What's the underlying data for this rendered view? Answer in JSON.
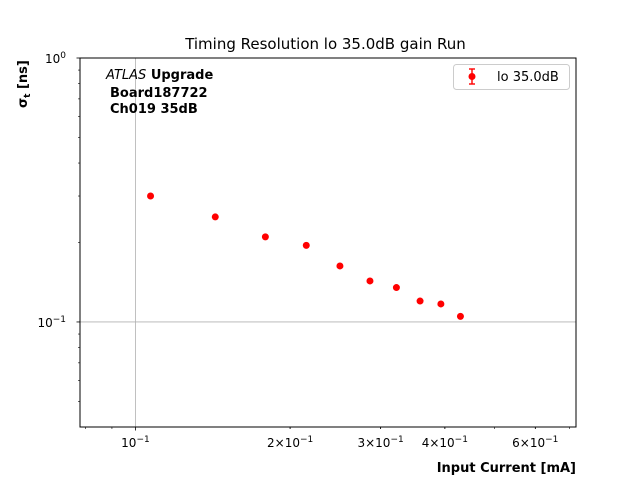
{
  "chart_data": {
    "type": "scatter",
    "title": "Timing Resolution lo 35.0dB gain Run",
    "xlabel": "Input Current [mA]",
    "ylabel": "σ_t [ns]",
    "xscale": "log",
    "yscale": "log",
    "xlim": [
      0.078,
      0.72
    ],
    "ylim": [
      0.04,
      1.0
    ],
    "grid": true,
    "legend_position": "top-right",
    "annotation": {
      "experiment": "ATLAS",
      "label": "Upgrade",
      "line2": "Board187722",
      "line3": "Ch019 35dB"
    },
    "x_ticks": [
      {
        "value": 0.1,
        "base": "10",
        "exp": "−1",
        "mant": ""
      },
      {
        "value": 0.2,
        "base": "10",
        "exp": "−1",
        "mant": "2×"
      },
      {
        "value": 0.3,
        "base": "10",
        "exp": "−1",
        "mant": "3×"
      },
      {
        "value": 0.4,
        "base": "10",
        "exp": "−1",
        "mant": "4×"
      },
      {
        "value": 0.6,
        "base": "10",
        "exp": "−1",
        "mant": "6×"
      }
    ],
    "y_ticks": [
      {
        "value": 1.0,
        "base": "10",
        "exp": "0"
      },
      {
        "value": 0.1,
        "base": "10",
        "exp": "−1"
      }
    ],
    "series": [
      {
        "name": "lo 35.0dB",
        "color": "#ff0000",
        "x": [
          0.107,
          0.143,
          0.179,
          0.215,
          0.25,
          0.286,
          0.322,
          0.358,
          0.393,
          0.429
        ],
        "y": [
          0.3,
          0.25,
          0.21,
          0.195,
          0.163,
          0.143,
          0.135,
          0.12,
          0.117,
          0.105
        ]
      }
    ]
  }
}
